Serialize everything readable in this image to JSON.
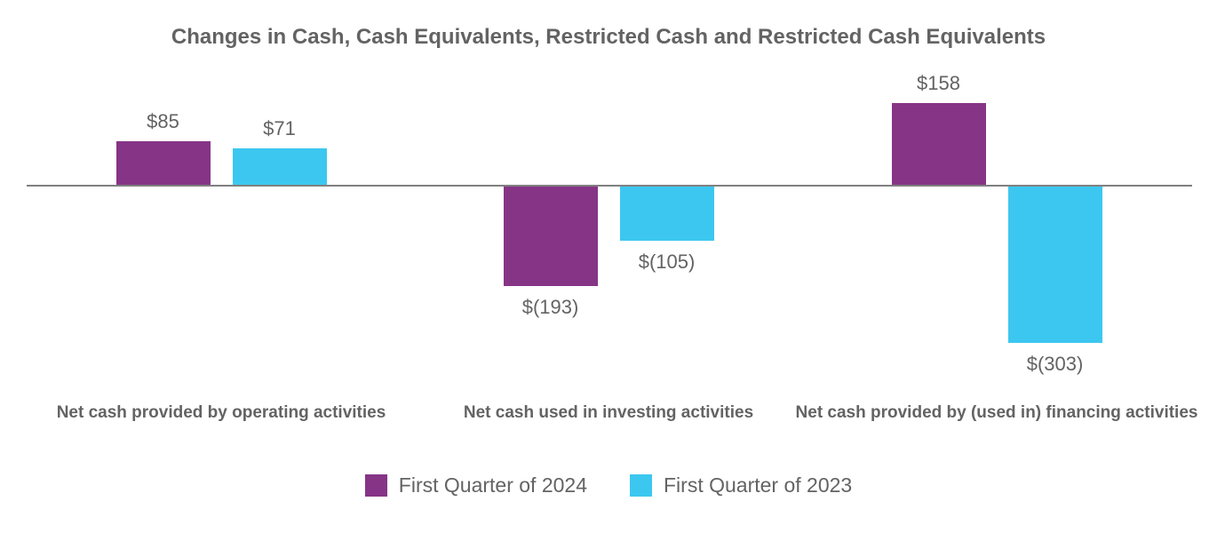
{
  "chart_data": {
    "type": "bar",
    "title": "Changes in Cash, Cash Equivalents, Restricted Cash and Restricted Cash Equivalents",
    "categories": [
      "Net cash provided by operating activities",
      "Net cash used in investing activities",
      "Net cash provided by (used in) financing activities"
    ],
    "series": [
      {
        "name": "First Quarter of 2024",
        "color": "#863486",
        "values": [
          85,
          -193,
          158
        ],
        "data_labels": [
          "$85",
          "$(193)",
          "$158"
        ]
      },
      {
        "name": "First Quarter of 2023",
        "color": "#3CC7F0",
        "values": [
          71,
          -105,
          -303
        ],
        "data_labels": [
          "$71",
          "$(105)",
          "$(303)"
        ]
      }
    ],
    "ylim": [
      -320,
      180
    ],
    "grid": false,
    "legend_position": "bottom",
    "axis": {
      "zero_line_color": "#808080"
    },
    "text_color": "#636363",
    "background_color": "#FFFFFF"
  }
}
